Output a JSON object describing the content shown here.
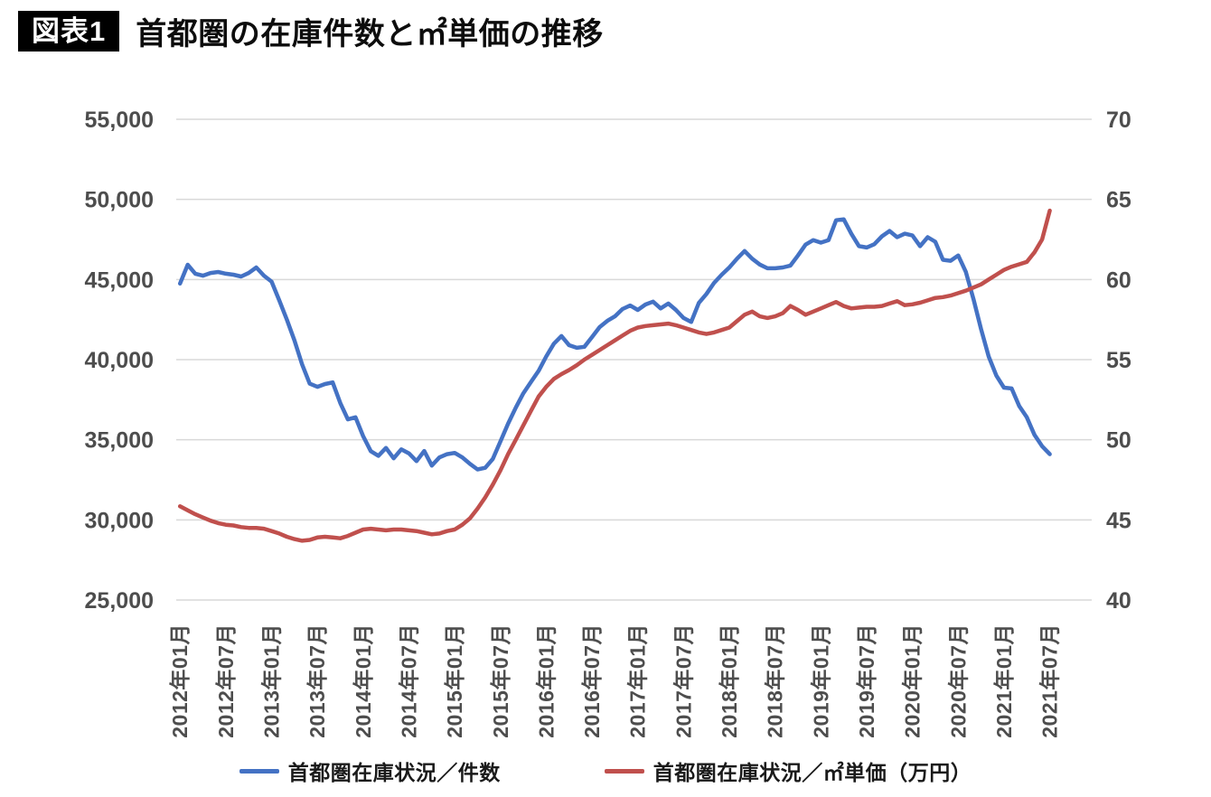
{
  "header": {
    "badge": "図表1",
    "title": "首都圏の在庫件数と㎡単価の推移"
  },
  "chart_data": {
    "type": "line",
    "title": "首都圏の在庫件数と㎡単価の推移",
    "grid": true,
    "legend_position": "bottom",
    "x": {
      "unit": "month",
      "start": "2012-01",
      "end": "2021-07",
      "total_slots": 120,
      "tick_every": 6,
      "tick_labels": [
        "2012年01月",
        "2012年07月",
        "2013年01月",
        "2013年07月",
        "2014年01月",
        "2014年07月",
        "2015年01月",
        "2015年07月",
        "2016年01月",
        "2016年07月",
        "2017年01月",
        "2017年07月",
        "2018年01月",
        "2018年07月",
        "2019年01月",
        "2019年07月",
        "2020年01月",
        "2020年07月",
        "2021年01月",
        "2021年07月"
      ]
    },
    "left_axis": {
      "min": 25000,
      "max": 55000,
      "step": 5000,
      "tick_labels": [
        "55,000",
        "50,000",
        "45,000",
        "40,000",
        "35,000",
        "30,000",
        "25,000"
      ]
    },
    "right_axis": {
      "min": 40,
      "max": 70,
      "step": 5,
      "tick_labels": [
        "70",
        "65",
        "60",
        "55",
        "50",
        "45",
        "40"
      ]
    },
    "series": [
      {
        "name": "首都圏在庫状況／件数",
        "axis": "left",
        "color": "#4472C4",
        "values": [
          44750,
          45920,
          45360,
          45240,
          45410,
          45470,
          45360,
          45300,
          45190,
          45410,
          45750,
          45240,
          44870,
          43700,
          42500,
          41200,
          39700,
          38500,
          38300,
          38480,
          38580,
          37300,
          36270,
          36400,
          35230,
          34290,
          34000,
          34490,
          33840,
          34400,
          34150,
          33670,
          34300,
          33390,
          33900,
          34100,
          34180,
          33900,
          33500,
          33150,
          33250,
          33800,
          34900,
          36000,
          37000,
          37900,
          38600,
          39300,
          40200,
          41000,
          41470,
          40900,
          40740,
          40800,
          41410,
          42030,
          42420,
          42700,
          43160,
          43380,
          43100,
          43440,
          43620,
          43200,
          43500,
          43100,
          42600,
          42350,
          43540,
          44100,
          44790,
          45300,
          45750,
          46300,
          46780,
          46300,
          45930,
          45700,
          45700,
          45750,
          45870,
          46500,
          47180,
          47460,
          47300,
          47460,
          48700,
          48760,
          47850,
          47080,
          47000,
          47200,
          47700,
          48030,
          47640,
          47860,
          47750,
          47080,
          47640,
          47360,
          46230,
          46170,
          46500,
          45480,
          43770,
          41900,
          40200,
          39000,
          38250,
          38200,
          37100,
          36400,
          35300,
          34600,
          34100
        ]
      },
      {
        "name": "首都圏在庫状況／㎡単価（万円）",
        "axis": "right",
        "color": "#C0504D",
        "values": [
          45.85,
          45.6,
          45.35,
          45.15,
          44.95,
          44.8,
          44.7,
          44.65,
          44.55,
          44.5,
          44.5,
          44.45,
          44.3,
          44.15,
          43.95,
          43.8,
          43.7,
          43.75,
          43.9,
          43.95,
          43.9,
          43.85,
          44.0,
          44.2,
          44.4,
          44.45,
          44.4,
          44.35,
          44.4,
          44.4,
          44.35,
          44.3,
          44.2,
          44.1,
          44.15,
          44.3,
          44.4,
          44.7,
          45.1,
          45.7,
          46.4,
          47.2,
          48.1,
          49.1,
          50.0,
          50.9,
          51.8,
          52.7,
          53.3,
          53.8,
          54.1,
          54.35,
          54.65,
          55.0,
          55.3,
          55.6,
          55.9,
          56.2,
          56.5,
          56.8,
          57.0,
          57.1,
          57.15,
          57.2,
          57.25,
          57.15,
          57.0,
          56.85,
          56.7,
          56.6,
          56.7,
          56.85,
          57.0,
          57.4,
          57.8,
          58.0,
          57.7,
          57.6,
          57.7,
          57.9,
          58.35,
          58.1,
          57.8,
          58.0,
          58.2,
          58.4,
          58.6,
          58.35,
          58.2,
          58.25,
          58.3,
          58.3,
          58.35,
          58.5,
          58.65,
          58.4,
          58.45,
          58.55,
          58.7,
          58.85,
          58.9,
          59.0,
          59.15,
          59.3,
          59.5,
          59.7,
          60.0,
          60.3,
          60.6,
          60.8,
          60.95,
          61.1,
          61.7,
          62.5,
          64.3
        ]
      }
    ]
  },
  "colors": {
    "gridline": "#D9D9D9",
    "axis_text": "#4d4d4d",
    "badge_bg": "#000000",
    "badge_text": "#ffffff"
  }
}
